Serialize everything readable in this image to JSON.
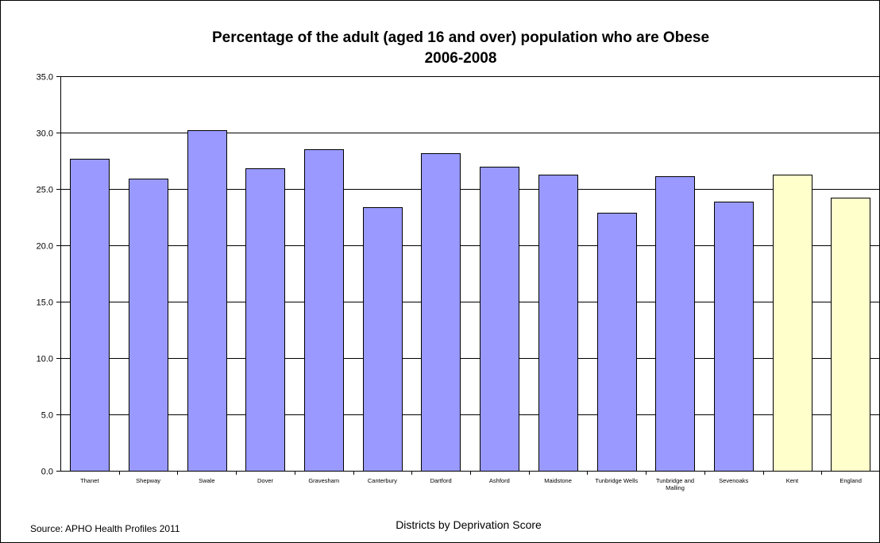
{
  "chart_data": {
    "type": "bar",
    "title": "Percentage of the adult (aged 16 and over) population who are Obese",
    "subtitle": "2006-2008",
    "xlabel": "Districts by Deprivation Score",
    "ylabel": "",
    "ylim": [
      0,
      35
    ],
    "yticks": [
      "0.0",
      "5.0",
      "10.0",
      "15.0",
      "20.0",
      "25.0",
      "30.0",
      "35.0"
    ],
    "grid": true,
    "legend": "none",
    "categories": [
      "Thanet",
      "Shepway",
      "Swale",
      "Dover",
      "Gravesham",
      "Canterbury",
      "Dartford",
      "Ashford",
      "Maidstone",
      "Tunbridge Wells",
      "Tunbridge and Malling",
      "Sevenoaks",
      "Kent",
      "England"
    ],
    "values": [
      27.7,
      25.9,
      30.2,
      26.8,
      28.5,
      23.4,
      28.2,
      27.0,
      26.3,
      22.9,
      26.1,
      23.9,
      26.3,
      24.2
    ],
    "colors": {
      "district": "#9999ff",
      "comparator": "#ffffcc",
      "comparator_categories": [
        "Kent",
        "England"
      ]
    }
  },
  "source": "Source: APHO Health Profiles 2011"
}
